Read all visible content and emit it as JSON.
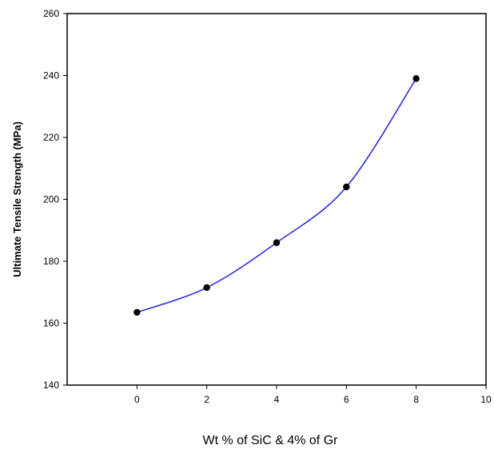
{
  "chart_data": {
    "type": "line",
    "title": "",
    "xlabel": "Wt % of SiC & 4% of Gr",
    "ylabel": "Ultimate Tensile Strength (MPa)",
    "xlim": [
      -2,
      10
    ],
    "ylim": [
      140,
      260
    ],
    "xticks": [
      "0",
      "2",
      "4",
      "6",
      "8",
      "10"
    ],
    "yticks": [
      "140",
      "160",
      "180",
      "200",
      "220",
      "240",
      "260"
    ],
    "grid": false,
    "legend": "none",
    "series": [
      {
        "x": [
          0,
          2,
          4,
          6,
          8
        ],
        "y": [
          163.5,
          171.5,
          186,
          204,
          239
        ],
        "color": "#2b2bdc",
        "marker": "circle",
        "marker_color": "#000000",
        "smooth": true
      }
    ]
  }
}
